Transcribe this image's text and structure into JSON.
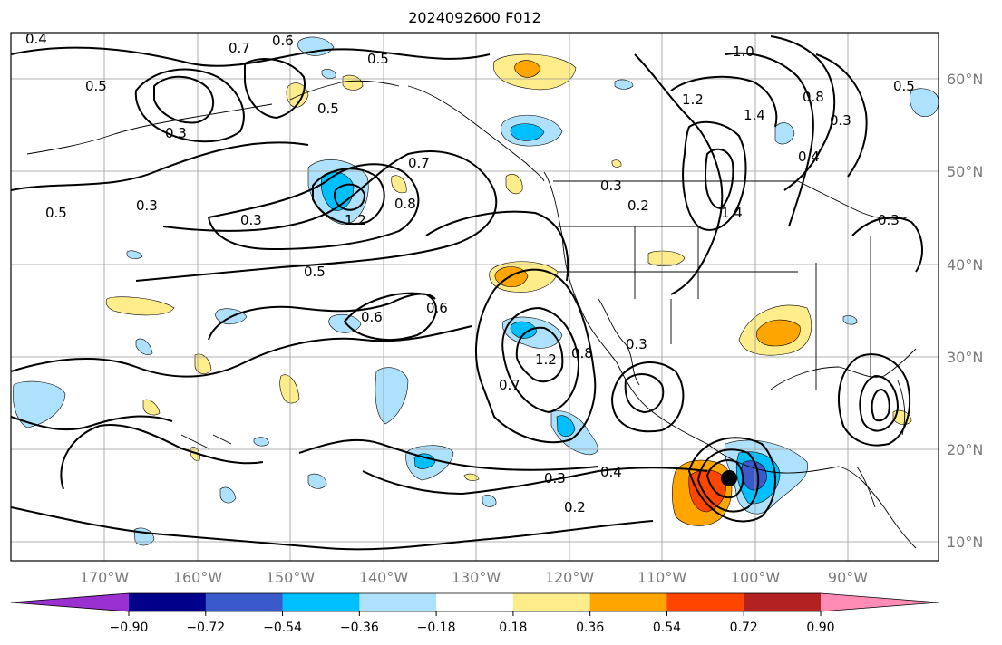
{
  "title": "2024092600 F012",
  "lon_labels": [
    "170°W",
    "160°W",
    "150°W",
    "140°W",
    "130°W",
    "120°W",
    "110°W",
    "100°W",
    "90°W"
  ],
  "lat_labels": [
    "60°N",
    "50°N",
    "40°N",
    "30°N",
    "20°N",
    "10°N"
  ],
  "colorbar": {
    "ticks": [
      "−0.90",
      "−0.72",
      "−0.54",
      "−0.36",
      "−0.18",
      "0.18",
      "0.36",
      "0.54",
      "0.72",
      "0.90"
    ],
    "colors": [
      "#9b30d0",
      "#00008b",
      "#3a5acc",
      "#00bfff",
      "#aee1fb",
      "#ffffff",
      "#ffec8b",
      "#ffa500",
      "#ff4500",
      "#b22222",
      "#ff8cb4"
    ]
  },
  "contour_labels": [
    "0.4",
    "0.7",
    "0.6",
    "0.5",
    "0.5",
    "0.3",
    "0.5",
    "1.0",
    "1.2",
    "1.4",
    "0.8",
    "0.5",
    "0.3",
    "0.3",
    "0.7",
    "0.3",
    "1.2",
    "0.8",
    "0.3",
    "0.2",
    "1.4",
    "0.4",
    "0.3",
    "0.5",
    "0.6",
    "0.6",
    "1.2",
    "0.8",
    "0.7",
    "0.4",
    "0.3",
    "0.2",
    "0.5",
    "0.3"
  ],
  "marker": "storm-center"
}
